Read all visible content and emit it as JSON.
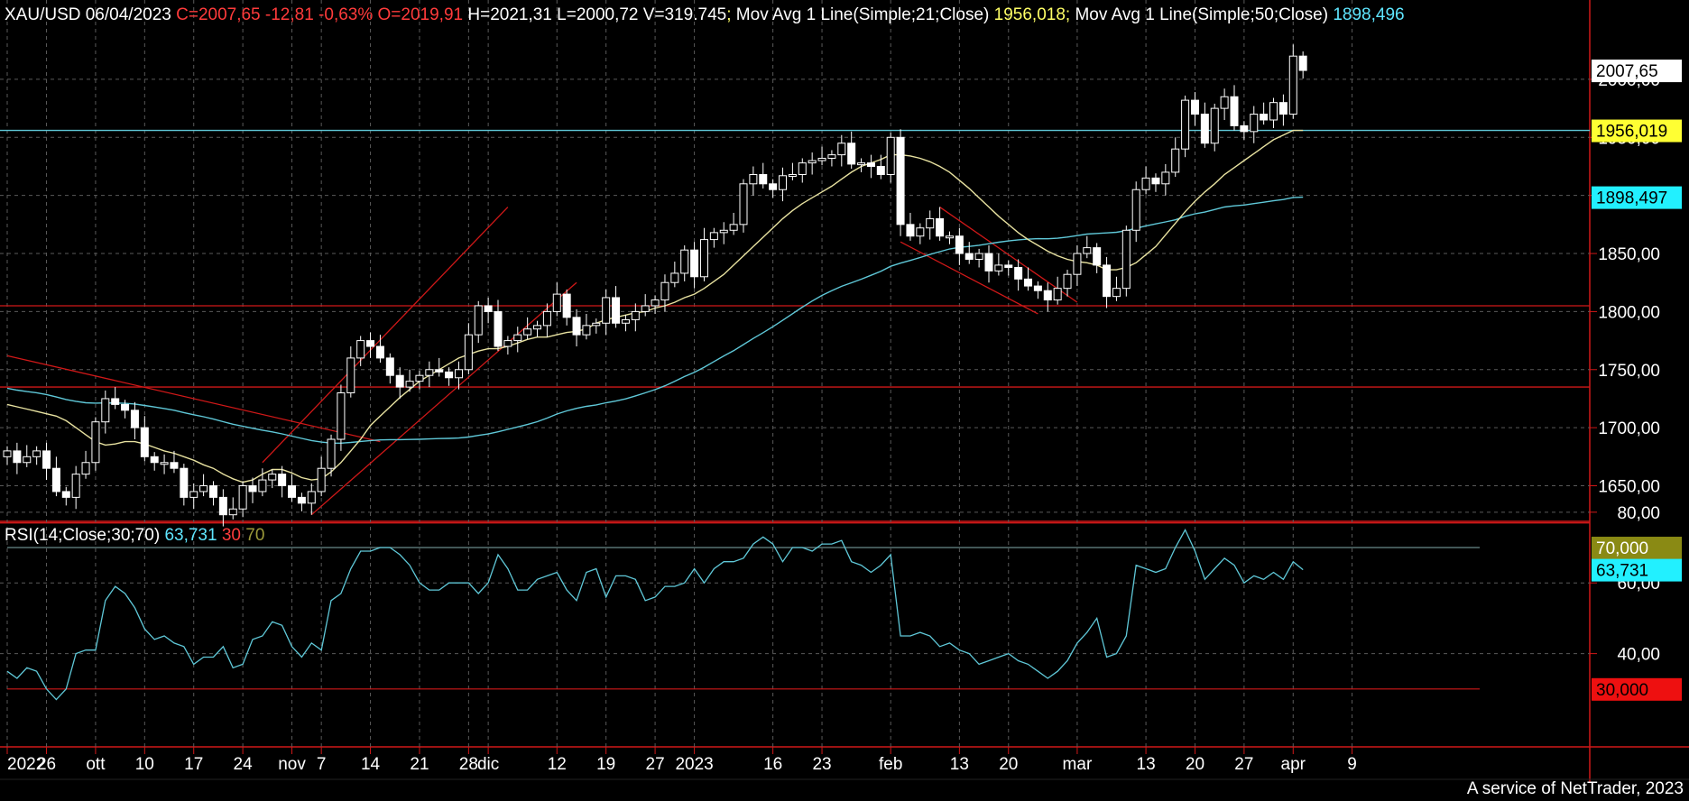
{
  "header": {
    "symbol": "XAU/USD 06/04/2023",
    "ohlc": "C=2007,65 -12,81 -0,63% O=2019,91",
    "hlv": "H=2021,31 L=2000,72 V=319.745",
    "ma21_label": "Mov Avg 1 Line(Simple;21;Close)",
    "ma21_value": "1956,018",
    "ma50_label": "Mov Avg 1 Line(Simple;50;Close)",
    "ma50_value": "1898,496"
  },
  "rsi_header": {
    "label": "RSI(14;Close;30;70)",
    "value": "63,731",
    "low": "30",
    "high": "70"
  },
  "footer": "A service of NetTrader, 2023",
  "colors": {
    "up": "#ffffff",
    "down": "#ffffff",
    "ma21": "#e8e2a0",
    "ma50": "#5fc8d8",
    "rsi": "#5fc8d8",
    "red": "#d01818",
    "grid": "#5a5a5a",
    "axis": "#d01818"
  },
  "chart_data": [
    {
      "type": "candlestick",
      "title": "XAU/USD 06/04/2023",
      "ylim": [
        1610,
        2045
      ],
      "y_ticks": [
        "1650,00",
        "1700,00",
        "1750,00",
        "1800,00",
        "1850,00",
        "1900,00",
        "1950,00",
        "2000,00"
      ],
      "price_tags": [
        {
          "value": 2007.65,
          "label": "2007,65",
          "style": "white"
        },
        {
          "value": 1956.019,
          "label": "1956,019",
          "style": "yellow"
        },
        {
          "value": 1898.497,
          "label": "1898,497",
          "style": "cyan"
        }
      ],
      "x_labels": [
        {
          "i": 0,
          "label": "2022"
        },
        {
          "i": 4,
          "label": "26"
        },
        {
          "i": 9,
          "label": "ott"
        },
        {
          "i": 14,
          "label": "10"
        },
        {
          "i": 19,
          "label": "17"
        },
        {
          "i": 24,
          "label": "24"
        },
        {
          "i": 29,
          "label": "nov"
        },
        {
          "i": 32,
          "label": "7"
        },
        {
          "i": 37,
          "label": "14"
        },
        {
          "i": 42,
          "label": "21"
        },
        {
          "i": 47,
          "label": "28"
        },
        {
          "i": 49,
          "label": "dic"
        },
        {
          "i": 56,
          "label": "12"
        },
        {
          "i": 61,
          "label": "19"
        },
        {
          "i": 66,
          "label": "27"
        },
        {
          "i": 70,
          "label": "2023"
        },
        {
          "i": 78,
          "label": "16"
        },
        {
          "i": 83,
          "label": "23"
        },
        {
          "i": 90,
          "label": "feb"
        },
        {
          "i": 97,
          "label": "13"
        },
        {
          "i": 102,
          "label": "20"
        },
        {
          "i": 109,
          "label": "mar"
        },
        {
          "i": 116,
          "label": "13"
        },
        {
          "i": 121,
          "label": "20"
        },
        {
          "i": 126,
          "label": "27"
        },
        {
          "i": 131,
          "label": "apr"
        },
        {
          "i": 137,
          "label": "9"
        }
      ],
      "hlines": [
        1956.0,
        1805.0,
        1735.0,
        1618.0
      ],
      "trendlines": [
        {
          "from": [
            0,
            1762
          ],
          "to": [
            38,
            1688
          ]
        },
        {
          "from": [
            26,
            1670
          ],
          "to": [
            51,
            1890
          ]
        },
        {
          "from": [
            31,
            1625
          ],
          "to": [
            58,
            1825
          ]
        },
        {
          "from": [
            91,
            1860
          ],
          "to": [
            105,
            1798
          ]
        },
        {
          "from": [
            95,
            1890
          ],
          "to": [
            109,
            1808
          ]
        }
      ],
      "closes": [
        1680,
        1670,
        1675,
        1680,
        1665,
        1645,
        1640,
        1660,
        1670,
        1705,
        1725,
        1720,
        1715,
        1700,
        1675,
        1670,
        1670,
        1665,
        1640,
        1645,
        1650,
        1640,
        1625,
        1630,
        1650,
        1645,
        1655,
        1660,
        1650,
        1640,
        1635,
        1645,
        1665,
        1690,
        1730,
        1760,
        1775,
        1770,
        1760,
        1745,
        1735,
        1740,
        1745,
        1750,
        1748,
        1743,
        1750,
        1780,
        1805,
        1800,
        1770,
        1775,
        1780,
        1785,
        1788,
        1800,
        1815,
        1795,
        1780,
        1788,
        1790,
        1812,
        1790,
        1793,
        1800,
        1805,
        1810,
        1825,
        1833,
        1853,
        1830,
        1862,
        1868,
        1870,
        1875,
        1910,
        1918,
        1910,
        1905,
        1917,
        1918,
        1928,
        1930,
        1932,
        1935,
        1945,
        1927,
        1928,
        1925,
        1918,
        1950,
        1875,
        1865,
        1872,
        1880,
        1865,
        1865,
        1850,
        1845,
        1850,
        1835,
        1840,
        1838,
        1828,
        1822,
        1818,
        1810,
        1820,
        1832,
        1850,
        1855,
        1840,
        1813,
        1820,
        1870,
        1905,
        1915,
        1910,
        1920,
        1940,
        1982,
        1970,
        1945,
        1975,
        1985,
        1960,
        1955,
        1970,
        1965,
        1980,
        1970,
        2020,
        2007.65
      ],
      "ma21": [
        1720,
        1718,
        1716,
        1714,
        1712,
        1710,
        1706,
        1700,
        1694,
        1688,
        1685,
        1686,
        1688,
        1688,
        1686,
        1683,
        1680,
        1678,
        1675,
        1672,
        1668,
        1665,
        1660,
        1656,
        1653,
        1655,
        1660,
        1664,
        1664,
        1661,
        1657,
        1655,
        1656,
        1662,
        1670,
        1680,
        1690,
        1702,
        1710,
        1718,
        1726,
        1733,
        1740,
        1745,
        1750,
        1755,
        1760,
        1763,
        1766,
        1768,
        1768,
        1770,
        1773,
        1776,
        1778,
        1778,
        1780,
        1782,
        1783,
        1785,
        1790,
        1793,
        1795,
        1797,
        1799,
        1800,
        1803,
        1805,
        1808,
        1812,
        1815,
        1820,
        1826,
        1832,
        1840,
        1848,
        1856,
        1864,
        1872,
        1880,
        1887,
        1893,
        1898,
        1903,
        1908,
        1914,
        1920,
        1925,
        1928,
        1931,
        1935,
        1935,
        1934,
        1932,
        1929,
        1925,
        1920,
        1913,
        1906,
        1898,
        1890,
        1882,
        1875,
        1868,
        1862,
        1857,
        1852,
        1848,
        1845,
        1843,
        1842,
        1840,
        1836,
        1836,
        1838,
        1842,
        1849,
        1856,
        1866,
        1876,
        1886,
        1895,
        1903,
        1910,
        1918,
        1924,
        1930,
        1936,
        1942,
        1948,
        1952,
        1956,
        1956.0
      ]
    },
    {
      "type": "line",
      "title": "RSI(14;Close;30;70)",
      "ylim": [
        20,
        82
      ],
      "y_ticks": [
        "40,00",
        "60,00",
        "80,00"
      ],
      "levels": [
        {
          "value": 70,
          "label": "70,000",
          "style": "olive"
        },
        {
          "value": 30,
          "label": "30,000",
          "style": "red"
        }
      ],
      "current": {
        "value": 63.731,
        "label": "63,731"
      },
      "values": [
        35,
        33,
        36,
        35,
        30,
        27,
        30,
        40,
        41,
        41,
        55,
        59,
        57,
        53,
        47,
        44,
        45,
        43,
        42,
        37,
        39,
        39,
        42,
        36,
        37,
        44,
        45,
        49,
        48,
        42,
        39,
        43,
        41,
        55,
        57,
        64,
        69,
        69,
        70,
        70,
        68,
        65,
        60,
        58,
        58,
        60,
        60,
        60,
        57,
        60,
        68,
        64,
        58,
        58,
        61,
        62,
        63,
        58,
        55,
        63,
        64,
        56,
        62,
        62,
        61,
        55,
        56,
        59,
        59,
        60,
        64,
        60,
        64,
        66,
        66,
        67,
        71,
        73,
        71,
        66,
        70,
        70,
        69,
        71,
        71,
        72,
        66,
        65,
        63,
        65,
        68,
        45,
        45,
        46,
        45,
        42,
        43,
        41,
        40,
        37,
        38,
        39,
        40,
        38,
        37,
        35,
        33,
        35,
        38,
        43,
        46,
        50,
        39,
        40,
        45,
        65,
        64,
        63,
        64,
        70,
        75,
        69,
        61,
        64,
        67,
        65,
        60,
        62,
        61,
        63,
        61,
        66,
        63.731
      ]
    }
  ]
}
